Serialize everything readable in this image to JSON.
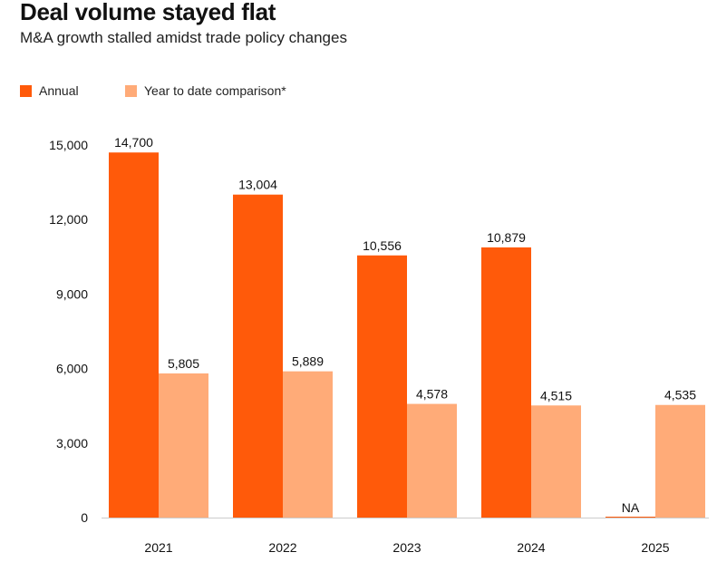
{
  "title": "Deal volume stayed flat",
  "subtitle": "M&A growth stalled amidst trade policy changes",
  "colors": {
    "annual": "#ff5a0a",
    "ytd": "#ffab78",
    "baseline": "#cccccc"
  },
  "chart_data": {
    "type": "bar",
    "categories": [
      "2021",
      "2022",
      "2023",
      "2024",
      "2025"
    ],
    "series": [
      {
        "name": "Annual",
        "values": [
          14700,
          13004,
          10556,
          10879,
          null
        ],
        "labels": [
          "14,700",
          "13,004",
          "10,556",
          "10,879",
          "NA"
        ]
      },
      {
        "name": "Year to date comparison*",
        "values": [
          5805,
          5889,
          4578,
          4515,
          4535
        ],
        "labels": [
          "5,805",
          "5,889",
          "4,578",
          "4,515",
          "4,535"
        ]
      }
    ],
    "yticks": [
      0,
      3000,
      6000,
      9000,
      12000,
      15000
    ],
    "ytick_labels": [
      "0",
      "3,000",
      "6,000",
      "9,000",
      "12,000",
      "15,000"
    ],
    "ylim": [
      0,
      15000
    ],
    "grid": false,
    "legend_position": "top-left"
  }
}
